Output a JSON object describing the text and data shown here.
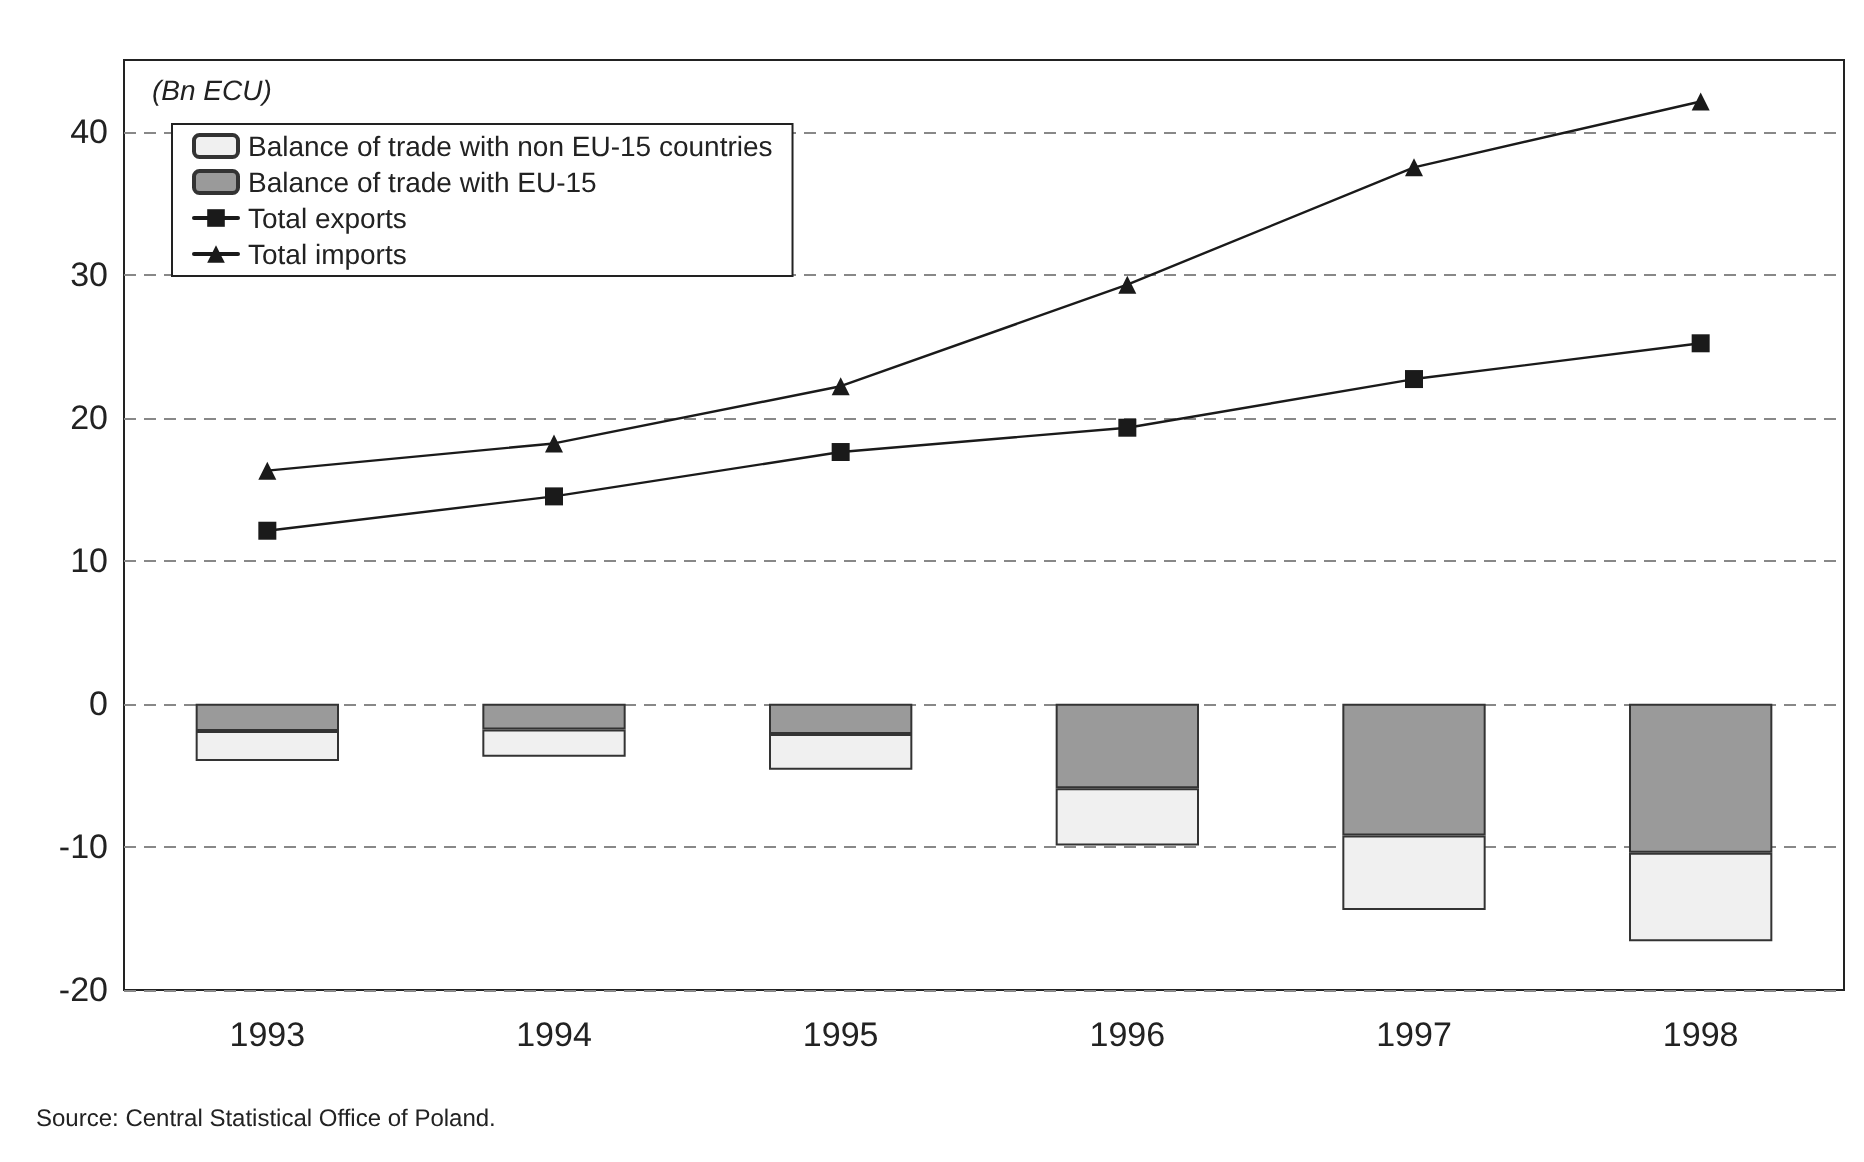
{
  "chart_data": {
    "type": "bar",
    "ylabel": "(Bn ECU)",
    "categories": [
      "1993",
      "1994",
      "1995",
      "1996",
      "1997",
      "1998"
    ],
    "stacked": true,
    "series": [
      {
        "name": "Balance of trade with EU-15",
        "color": "#9a9a9a",
        "values": [
          -1.9,
          -1.8,
          -2.1,
          -5.9,
          -9.2,
          -10.4
        ]
      },
      {
        "name": "Balance of trade with non EU-15 countries",
        "color": "#f0f0f0",
        "values": [
          -2.1,
          -1.9,
          -2.5,
          -4.0,
          -5.2,
          -6.2
        ]
      },
      {
        "name": "Total exports",
        "type": "line",
        "marker": "square",
        "color": "#1a1a1a",
        "values": [
          12.1,
          14.5,
          17.6,
          19.3,
          22.7,
          25.2
        ]
      },
      {
        "name": "Total imports",
        "type": "line",
        "marker": "triangle",
        "color": "#1a1a1a",
        "values": [
          16.3,
          18.2,
          22.2,
          29.3,
          37.5,
          42.1
        ]
      }
    ],
    "ylim": [
      -20,
      45
    ],
    "yticks": [
      -20,
      -10,
      0,
      10,
      20,
      30,
      40
    ],
    "grid": "y",
    "legend": "top left",
    "line_style": "solid",
    "annotations": [
      "Source: Central Statistical Office of Poland."
    ]
  }
}
